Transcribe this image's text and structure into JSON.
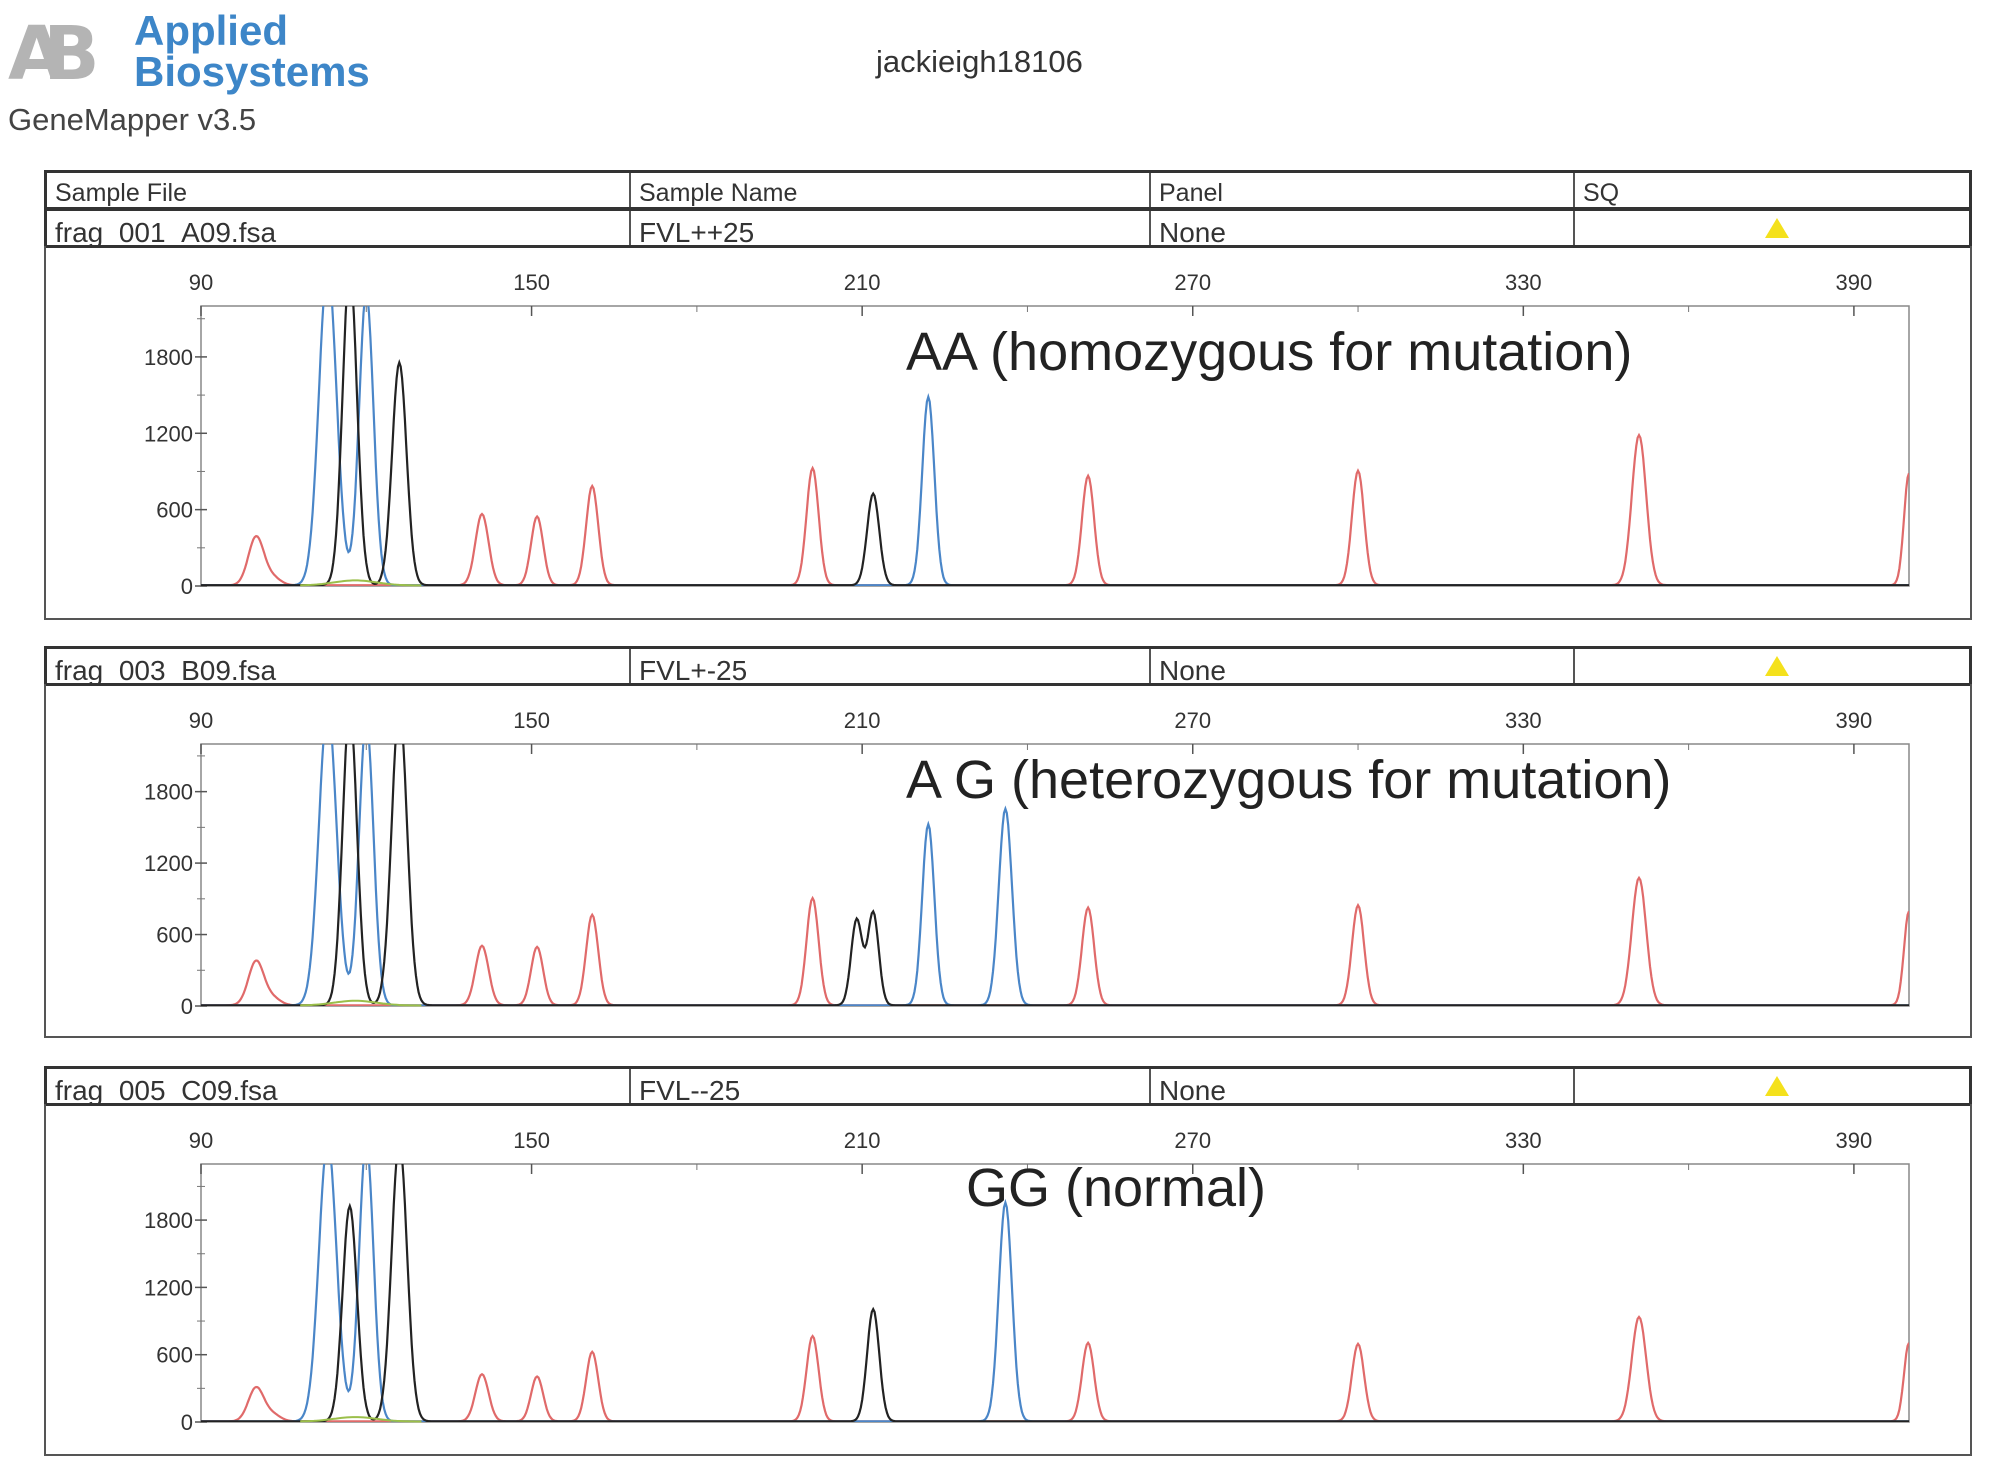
{
  "header": {
    "logo_mark": "AB",
    "brand_line1": "Applied",
    "brand_line2": "Biosystems",
    "software": "GeneMapper  v3.5",
    "user": "jackieigh18106"
  },
  "columns": {
    "sample_file": "Sample File",
    "sample_name": "Sample Name",
    "panel": "Panel",
    "sq": "SQ"
  },
  "colors": {
    "blue": "#4a86c8",
    "black": "#222222",
    "red": "#e06a6a",
    "green": "#9bbf4a",
    "sq_triangle": "#f4e11c"
  },
  "chart_data": [
    {
      "type": "line",
      "sample_file": "frag_001_A09.fsa",
      "sample_name": "FVL++25",
      "panel": "None",
      "annotation": "AA (homozygous for mutation)",
      "x_ticks": [
        "90",
        "150",
        "210",
        "270",
        "330",
        "390"
      ],
      "y_ticks": [
        "0",
        "600",
        "1200",
        "1800"
      ],
      "xlim": [
        90,
        400
      ],
      "ylim": [
        0,
        2200
      ],
      "series": [
        {
          "name": "blue",
          "peaks": [
            [
              113,
              2500,
              1.6
            ],
            [
              120,
              2300,
              1.3
            ],
            [
              222,
              1480,
              1.1
            ]
          ]
        },
        {
          "name": "black",
          "peaks": [
            [
              117,
              2500,
              1.3
            ],
            [
              126,
              1750,
              1.3
            ],
            [
              212,
              720,
              1.1
            ]
          ]
        },
        {
          "name": "red",
          "peaks": [
            [
              100,
              380,
              1.4
            ],
            [
              141,
              560,
              1.2
            ],
            [
              151,
              540,
              1.1
            ],
            [
              161,
              780,
              1.1
            ],
            [
              201,
              920,
              1.1
            ],
            [
              251,
              860,
              1.1
            ],
            [
              300,
              900,
              1.1
            ],
            [
              351,
              1180,
              1.3
            ],
            [
              400,
              880,
              0.9
            ]
          ]
        }
      ]
    },
    {
      "type": "line",
      "sample_file": "frag_003_B09.fsa",
      "sample_name": "FVL+-25",
      "panel": "None",
      "annotation": "A  G (heterozygous for mutation)",
      "x_ticks": [
        "90",
        "150",
        "210",
        "270",
        "330",
        "390"
      ],
      "y_ticks": [
        "0",
        "600",
        "1200",
        "1800"
      ],
      "xlim": [
        90,
        400
      ],
      "ylim": [
        0,
        2200
      ],
      "series": [
        {
          "name": "blue",
          "peaks": [
            [
              113,
              2500,
              1.6
            ],
            [
              120,
              2400,
              1.3
            ],
            [
              222,
              1520,
              1.1
            ],
            [
              236,
              1650,
              1.2
            ]
          ]
        },
        {
          "name": "black",
          "peaks": [
            [
              117,
              2500,
              1.3
            ],
            [
              126,
              2500,
              1.4
            ],
            [
              209,
              720,
              1.0
            ],
            [
              212,
              780,
              1.0
            ]
          ]
        },
        {
          "name": "red",
          "peaks": [
            [
              100,
              370,
              1.4
            ],
            [
              141,
              500,
              1.2
            ],
            [
              151,
              490,
              1.1
            ],
            [
              161,
              760,
              1.1
            ],
            [
              201,
              900,
              1.1
            ],
            [
              251,
              820,
              1.1
            ],
            [
              300,
              840,
              1.1
            ],
            [
              351,
              1070,
              1.3
            ],
            [
              400,
              790,
              0.9
            ]
          ]
        }
      ]
    },
    {
      "type": "line",
      "sample_file": "frag_005_C09.fsa",
      "sample_name": "FVL--25",
      "panel": "None",
      "annotation": "GG (normal)",
      "x_ticks": [
        "90",
        "150",
        "210",
        "270",
        "330",
        "390"
      ],
      "y_ticks": [
        "0",
        "600",
        "1200",
        "1800"
      ],
      "xlim": [
        90,
        400
      ],
      "ylim": [
        0,
        2300
      ],
      "series": [
        {
          "name": "blue",
          "peaks": [
            [
              113,
              2500,
              1.6
            ],
            [
              120,
              2500,
              1.3
            ],
            [
              236,
              1950,
              1.2
            ]
          ]
        },
        {
          "name": "black",
          "peaks": [
            [
              117,
              1920,
              1.3
            ],
            [
              126,
              2500,
              1.4
            ],
            [
              212,
              1000,
              1.1
            ]
          ]
        },
        {
          "name": "red",
          "peaks": [
            [
              100,
              300,
              1.4
            ],
            [
              141,
              420,
              1.2
            ],
            [
              151,
              400,
              1.1
            ],
            [
              161,
              620,
              1.1
            ],
            [
              201,
              760,
              1.1
            ],
            [
              251,
              700,
              1.1
            ],
            [
              300,
              690,
              1.1
            ],
            [
              351,
              930,
              1.3
            ],
            [
              400,
              700,
              0.9
            ]
          ]
        }
      ]
    }
  ]
}
